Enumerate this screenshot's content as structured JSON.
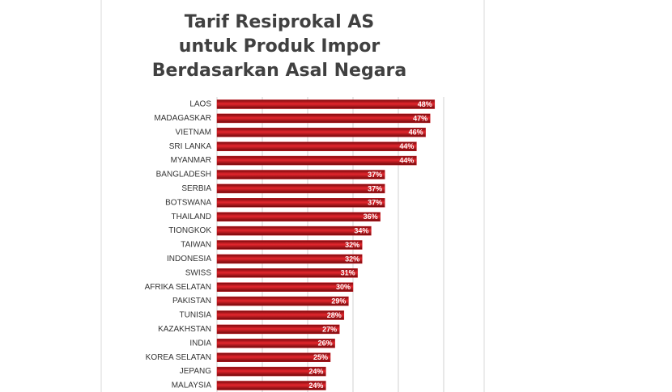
{
  "chart_data": {
    "type": "hbar",
    "title": [
      "Tarif Resiprokal AS",
      "untuk Produk Impor",
      "Berdasarkan Asal Negara"
    ],
    "categories": [
      "LAOS",
      "MADAGASKAR",
      "VIETNAM",
      "SRI LANKA",
      "MYANMAR",
      "BANGLADESH",
      "SERBIA",
      "BOTSWANA",
      "THAILAND",
      "TIONGKOK",
      "TAIWAN",
      "INDONESIA",
      "SWISS",
      "AFRIKA SELATAN",
      "PAKISTAN",
      "TUNISIA",
      "KAZAKHSTAN",
      "INDIA",
      "KOREA SELATAN",
      "JEPANG",
      "MALAYSIA"
    ],
    "values": [
      48,
      47,
      46,
      44,
      44,
      37,
      37,
      37,
      36,
      34,
      32,
      32,
      31,
      30,
      29,
      28,
      27,
      26,
      25,
      24,
      24
    ],
    "value_labels": [
      "48%",
      "47%",
      "46%",
      "44%",
      "44%",
      "37%",
      "37%",
      "37%",
      "36%",
      "34%",
      "32%",
      "32%",
      "31%",
      "30%",
      "29%",
      "28%",
      "27%",
      "26%",
      "25%",
      "24%",
      "24%"
    ],
    "color": "#c8161d",
    "xlim": [
      0,
      50
    ],
    "xgrid": [
      0,
      10,
      20,
      30,
      40,
      50
    ],
    "grid": true
  }
}
